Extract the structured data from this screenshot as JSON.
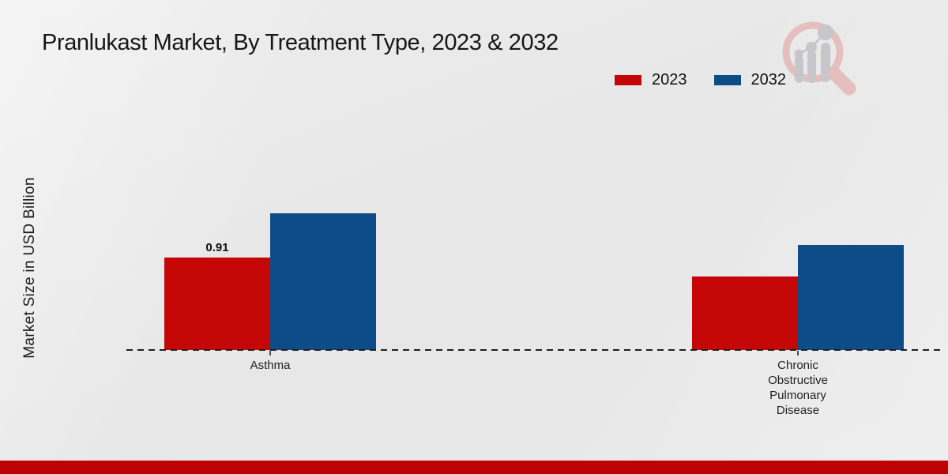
{
  "chart_data": {
    "type": "bar",
    "title": "Pranlukast Market, By Treatment Type, 2023 & 2032",
    "ylabel": "Market Size in USD Billion",
    "xlabel": "",
    "categories": [
      "Asthma",
      "Chronic Obstructive Pulmonary Disease"
    ],
    "series": [
      {
        "name": "2023",
        "color": "#c50606",
        "values": [
          0.91,
          0.72
        ],
        "value_labels": [
          "0.91",
          ""
        ]
      },
      {
        "name": "2032",
        "color": "#0e4c88",
        "values": [
          1.34,
          1.03
        ],
        "value_labels": [
          "",
          ""
        ]
      }
    ],
    "ylim": [
      0,
      1.55
    ],
    "grid": false,
    "legend_position": "top-right",
    "baseline_style": "dashed"
  },
  "footer": {
    "band_color": "#bf0303"
  },
  "watermark": {
    "magnifier_color": "#e5bebe",
    "bars_color": "#c7c7cb"
  }
}
